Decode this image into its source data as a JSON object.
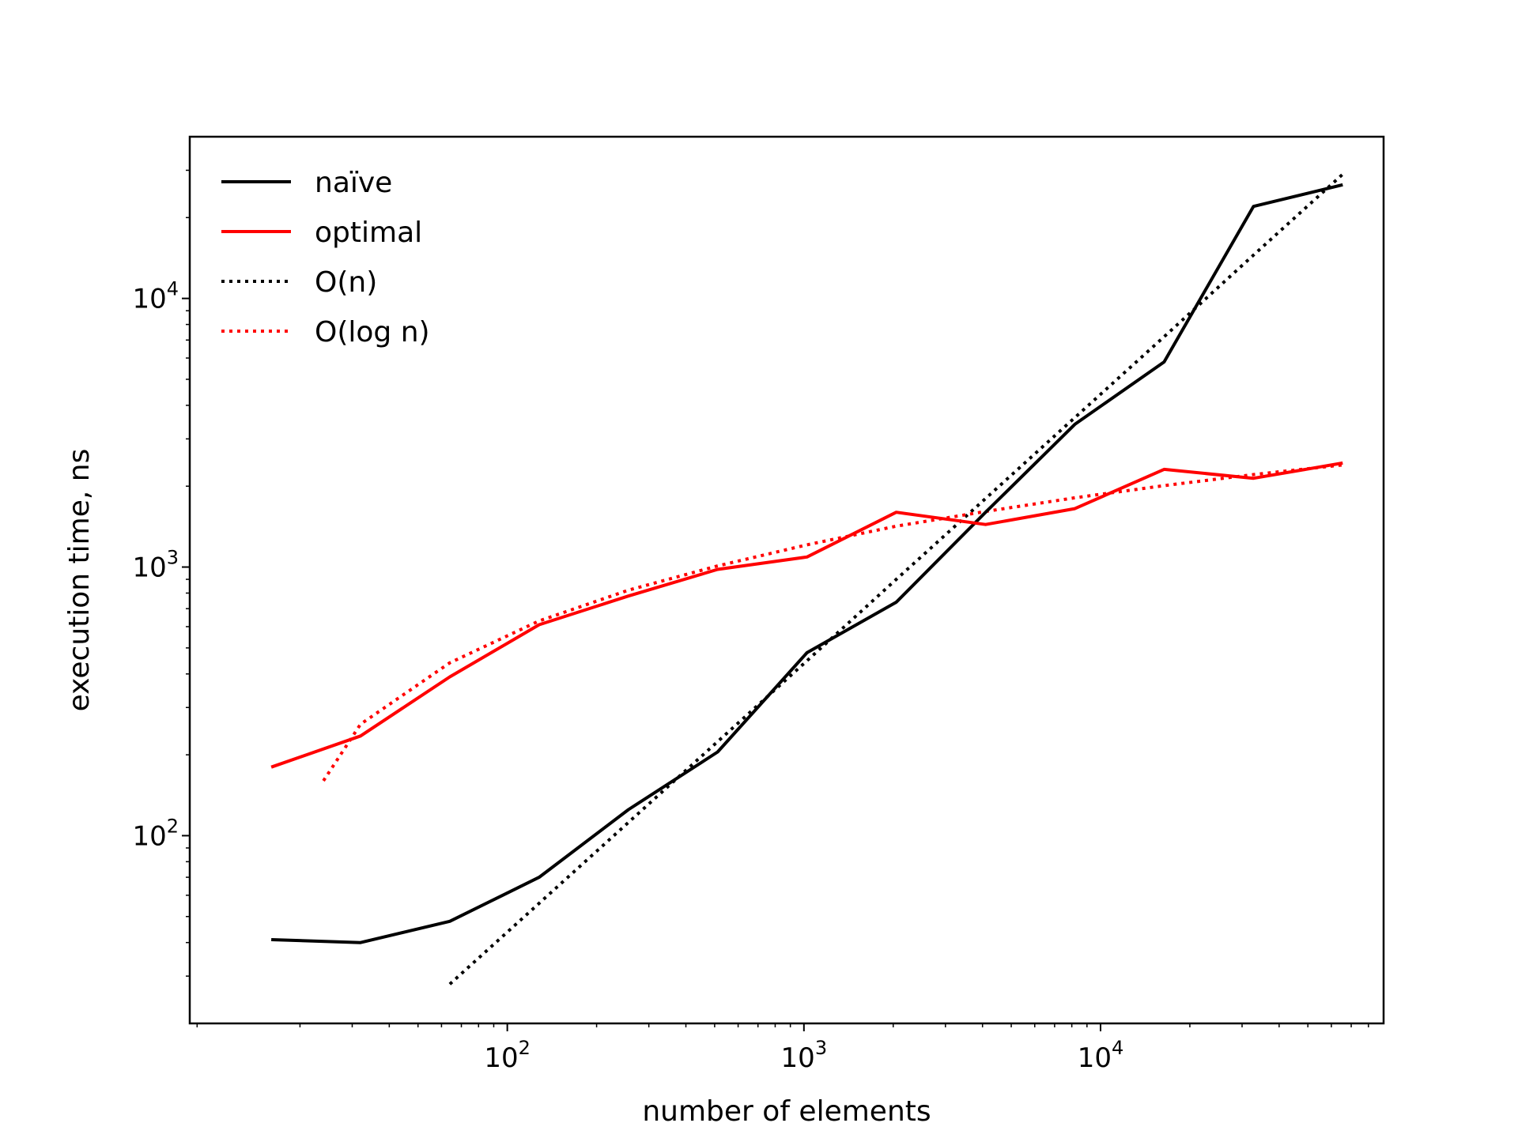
{
  "chart_data": {
    "type": "line",
    "title": "",
    "xlabel": "number of elements",
    "ylabel": "execution time, ns",
    "xscale": "log",
    "yscale": "log",
    "xlim": [
      8.5,
      90000
    ],
    "ylim": [
      20,
      40000
    ],
    "grid": false,
    "legend_position": "top-left",
    "x_ticks": [
      {
        "value": 100,
        "base": "10",
        "exp": "2"
      },
      {
        "value": 1000,
        "base": "10",
        "exp": "3"
      },
      {
        "value": 10000,
        "base": "10",
        "exp": "4"
      }
    ],
    "y_ticks": [
      {
        "value": 100,
        "base": "10",
        "exp": "2"
      },
      {
        "value": 1000,
        "base": "10",
        "exp": "3"
      },
      {
        "value": 10000,
        "base": "10",
        "exp": "4"
      }
    ],
    "series": [
      {
        "name": "naïve",
        "color": "#000000",
        "style": "solid",
        "x": [
          16,
          32,
          64,
          128,
          256,
          512,
          1024,
          2048,
          4096,
          8192,
          16384,
          32768,
          65536
        ],
        "y": [
          41,
          40,
          48,
          70,
          125,
          205,
          480,
          740,
          1600,
          3400,
          5800,
          22000,
          26500
        ]
      },
      {
        "name": "optimal",
        "color": "#ff0000",
        "style": "solid",
        "x": [
          16,
          32,
          64,
          128,
          256,
          512,
          1024,
          2048,
          4096,
          8192,
          16384,
          32768,
          65536
        ],
        "y": [
          180,
          235,
          390,
          610,
          780,
          980,
          1090,
          1600,
          1440,
          1650,
          2310,
          2140,
          2440
        ]
      },
      {
        "name": "O(n)",
        "color": "#000000",
        "style": "dotted",
        "x": [
          64,
          128,
          256,
          512,
          1024,
          2048,
          4096,
          8192,
          16384,
          32768,
          65536
        ],
        "y": [
          28,
          56,
          112,
          224,
          448,
          900,
          1800,
          3600,
          7200,
          14500,
          29000
        ]
      },
      {
        "name": "O(log n)",
        "color": "#ff0000",
        "style": "dotted",
        "x": [
          24,
          32,
          64,
          128,
          256,
          512,
          1024,
          2048,
          4096,
          8192,
          16384,
          32768,
          65536
        ],
        "y": [
          160,
          260,
          440,
          630,
          820,
          1010,
          1210,
          1420,
          1610,
          1810,
          2010,
          2210,
          2400
        ]
      }
    ]
  }
}
